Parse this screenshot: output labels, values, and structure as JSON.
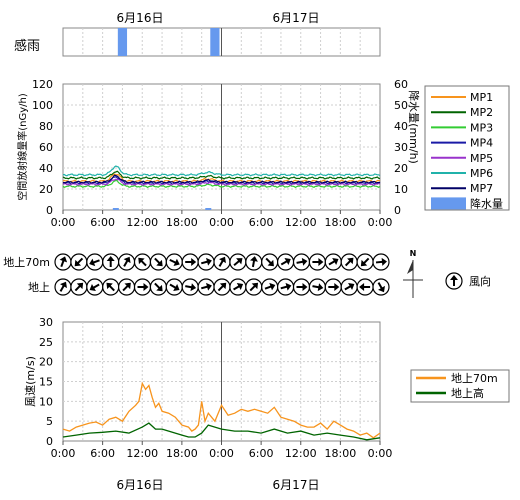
{
  "dates": {
    "top": [
      "6月16日",
      "6月17日"
    ],
    "bottom": [
      "6月16日",
      "6月17日"
    ]
  },
  "rain_strip": {
    "label": "感雨",
    "detected": [
      [
        8,
        10
      ],
      [
        22,
        24
      ]
    ]
  },
  "time_ticks": [
    "0:00",
    "6:00",
    "12:00",
    "18:00",
    "0:00",
    "6:00",
    "12:00",
    "18:00",
    "0:00"
  ],
  "dose_chart": {
    "type": "line",
    "ylabel": "空間放射線量率(nGy/h)",
    "y2label": "降水量(mm/h)",
    "ylim": [
      0,
      120
    ],
    "y2lim": [
      0,
      60
    ],
    "yticks": [
      0,
      20,
      40,
      60,
      80,
      100,
      120
    ],
    "y2ticks": [
      0,
      10,
      20,
      30,
      40,
      50,
      60
    ],
    "xlim": [
      0,
      48
    ],
    "grid": true,
    "legend_position": "right",
    "series": [
      {
        "name": "MP1",
        "color": "#f7941d",
        "base": 27.5,
        "peak": 7
      },
      {
        "name": "MP2",
        "color": "#006400",
        "base": 30.5,
        "peak": 6
      },
      {
        "name": "MP3",
        "color": "#33cc33",
        "base": 22.5,
        "peak": 5
      },
      {
        "name": "MP4",
        "color": "#1a1aa6",
        "base": 25.5,
        "peak": 6
      },
      {
        "name": "MP5",
        "color": "#9932cc",
        "base": 24.5,
        "peak": 5
      },
      {
        "name": "MP6",
        "color": "#20b2aa",
        "base": 33.5,
        "peak": 8
      },
      {
        "name": "MP7",
        "color": "#000066",
        "base": 26.5,
        "peak": 6
      }
    ],
    "precip_legend": "降水量",
    "precip_color": "#6699ee"
  },
  "wind_direction": {
    "rows": [
      {
        "label": "地上70m",
        "angles": [
          20,
          225,
          250,
          0,
          30,
          315,
          135,
          115,
          90,
          75,
          30,
          50,
          10,
          135,
          60,
          80,
          90,
          60,
          45,
          225,
          85
        ]
      },
      {
        "label": "地上",
        "angles": [
          30,
          45,
          240,
          315,
          45,
          90,
          135,
          120,
          100,
          75,
          45,
          60,
          45,
          70,
          75,
          90,
          100,
          90,
          60,
          270,
          150
        ]
      }
    ],
    "north": "N",
    "legend": "風向"
  },
  "wind_speed": {
    "type": "line",
    "ylabel": "風速(m/s)",
    "ylim": [
      0,
      30
    ],
    "yticks": [
      0,
      5,
      10,
      15,
      20,
      25,
      30
    ],
    "xlim": [
      0,
      48
    ],
    "grid": true,
    "legend_position": "right",
    "series": [
      {
        "name": "地上70m",
        "color": "#f7941d",
        "x": [
          0,
          1,
          2,
          3,
          4,
          5,
          6,
          7,
          8,
          9,
          10,
          11,
          11.5,
          12,
          12.5,
          13,
          13.5,
          14,
          14.5,
          15,
          16,
          17,
          18,
          19,
          19.5,
          20,
          20.5,
          21,
          21.5,
          22,
          23,
          24,
          25,
          26,
          27,
          28,
          29,
          30,
          31,
          32,
          33,
          34,
          35,
          36,
          37,
          38,
          39,
          40,
          41,
          42,
          43,
          44,
          45,
          46,
          47,
          48
        ],
        "y": [
          3,
          2.5,
          3.5,
          4,
          4.5,
          4.8,
          4,
          5.5,
          6,
          5,
          7.5,
          9,
          10,
          14.5,
          13,
          14,
          11,
          8.5,
          9.5,
          7.5,
          7,
          6,
          4,
          3.5,
          2.5,
          3,
          4,
          10,
          5,
          7,
          5,
          9,
          6.5,
          7,
          8,
          7.5,
          8,
          7.5,
          7,
          8.5,
          6,
          5.5,
          5,
          4,
          3.5,
          3.5,
          4.5,
          3,
          5,
          4,
          3,
          2.5,
          1.5,
          2,
          0.8,
          2
        ]
      },
      {
        "name": "地上高",
        "color": "#006400",
        "x": [
          0,
          2,
          4,
          6,
          8,
          10,
          12,
          13,
          14,
          15,
          16,
          18,
          19,
          20,
          21,
          22,
          24,
          26,
          28,
          30,
          32,
          34,
          36,
          38,
          40,
          42,
          44,
          46,
          48
        ],
        "y": [
          1,
          1.5,
          2,
          2.2,
          2.5,
          2,
          3.5,
          4.5,
          3,
          3,
          2.5,
          1.5,
          1,
          1,
          2,
          4,
          3,
          2.5,
          2.5,
          2,
          3,
          2,
          2.5,
          1.5,
          2,
          1.5,
          1,
          0.3,
          0.8
        ]
      }
    ]
  }
}
